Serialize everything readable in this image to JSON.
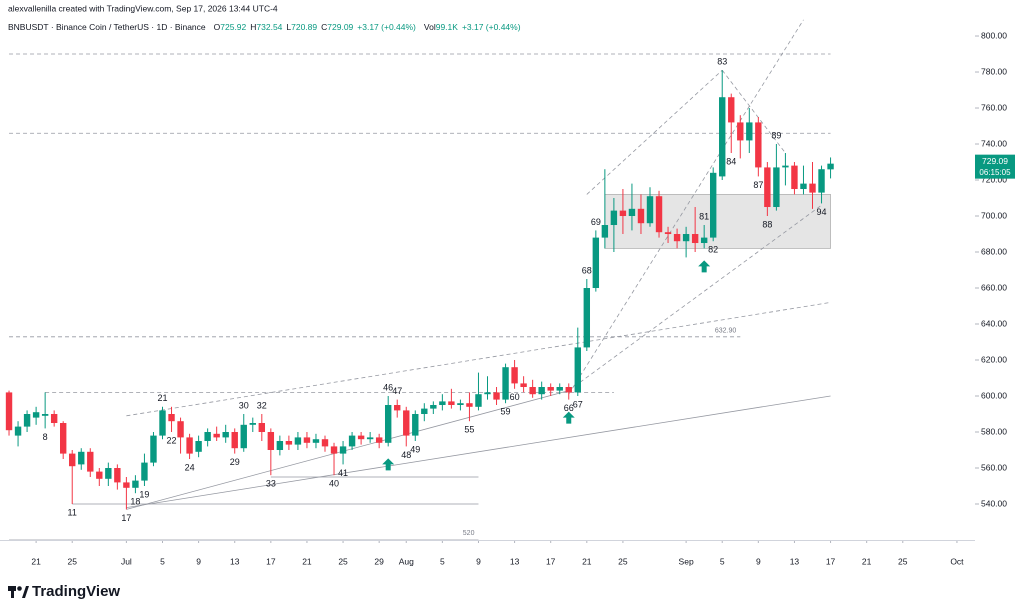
{
  "header": {
    "credit": "alexvallenilla created with TradingView.com, Sep 17, 2026 13:44 UTC-4",
    "symbol_info": "BNBUSDT · Binance Coin / TetherUS · 1D · Binance",
    "o_label": "O",
    "h_label": "H",
    "l_label": "L",
    "c_label": "C",
    "change": "+3.17 (+0.44%)",
    "vol_label": "Vol",
    "volume": "99.1K",
    "vol_change": "+3.17 (+0.44%)"
  },
  "footer": {
    "brand": "TradingView"
  },
  "chart_data": {
    "type": "candlestick",
    "up_color": "#089981",
    "down_color": "#f23645",
    "grid": false,
    "x": [
      "2026-06-18",
      "2026-06-19",
      "2026-06-20",
      "2026-06-21",
      "2026-06-22",
      "2026-06-23",
      "2026-06-24",
      "2026-06-25",
      "2026-06-26",
      "2026-06-27",
      "2026-06-28",
      "2026-06-29",
      "2026-06-30",
      "2026-07-01",
      "2026-07-02",
      "2026-07-03",
      "2026-07-04",
      "2026-07-05",
      "2026-07-06",
      "2026-07-07",
      "2026-07-08",
      "2026-07-09",
      "2026-07-10",
      "2026-07-11",
      "2026-07-12",
      "2026-07-13",
      "2026-07-14",
      "2026-07-15",
      "2026-07-16",
      "2026-07-17",
      "2026-07-18",
      "2026-07-19",
      "2026-07-20",
      "2026-07-21",
      "2026-07-22",
      "2026-07-23",
      "2026-07-24",
      "2026-07-25",
      "2026-07-26",
      "2026-07-27",
      "2026-07-28",
      "2026-07-29",
      "2026-07-30",
      "2026-07-31",
      "2026-08-01",
      "2026-08-02",
      "2026-08-03",
      "2026-08-04",
      "2026-08-05",
      "2026-08-06",
      "2026-08-07",
      "2026-08-08",
      "2026-08-09",
      "2026-08-10",
      "2026-08-11",
      "2026-08-12",
      "2026-08-13",
      "2026-08-14",
      "2026-08-15",
      "2026-08-16",
      "2026-08-17",
      "2026-08-18",
      "2026-08-19",
      "2026-08-20",
      "2026-08-21",
      "2026-08-22",
      "2026-08-23",
      "2026-08-24",
      "2026-08-25",
      "2026-08-26",
      "2026-08-27",
      "2026-08-28",
      "2026-08-29",
      "2026-08-30",
      "2026-08-31",
      "2026-09-01",
      "2026-09-02",
      "2026-09-03",
      "2026-09-04",
      "2026-09-05",
      "2026-09-06",
      "2026-09-07",
      "2026-09-08",
      "2026-09-09",
      "2026-09-10",
      "2026-09-11",
      "2026-09-12",
      "2026-09-13",
      "2026-09-14",
      "2026-09-15",
      "2026-09-16",
      "2026-09-17"
    ],
    "open": [
      602,
      578,
      583,
      588,
      589,
      590,
      585,
      568,
      562,
      569,
      558,
      554,
      560,
      552,
      549,
      553,
      563,
      578,
      590,
      586,
      577,
      569,
      575,
      579,
      577,
      580,
      571,
      584,
      585,
      580,
      570,
      575,
      573,
      577,
      574,
      576,
      572,
      568,
      572,
      578,
      576,
      577,
      574,
      595,
      592,
      578,
      590,
      593,
      595,
      597,
      595,
      596,
      594,
      601,
      602,
      598,
      616,
      607,
      605,
      601,
      605,
      603,
      605,
      602,
      627,
      660,
      688,
      695,
      703,
      700,
      704,
      696,
      711,
      691,
      690,
      686,
      690,
      685,
      688,
      722,
      766,
      752,
      742,
      752,
      727,
      705,
      727,
      728,
      715,
      718,
      713,
      725.92
    ],
    "high": [
      603,
      586,
      592,
      594,
      602,
      592,
      586,
      570,
      571,
      571,
      560,
      563,
      562,
      555,
      556,
      568,
      580,
      594,
      594,
      588,
      579,
      578,
      582,
      583,
      584,
      582,
      590,
      588,
      590,
      582,
      578,
      578,
      580,
      580,
      579,
      578,
      574,
      575,
      580,
      580,
      580,
      579,
      600,
      598,
      594,
      592,
      596,
      597,
      601,
      604,
      598,
      602,
      613,
      611,
      605,
      618,
      620,
      611,
      609,
      608,
      607,
      607,
      607,
      638,
      665,
      692,
      726,
      710,
      715,
      718,
      712,
      716,
      714,
      694,
      693,
      694,
      705,
      695,
      727,
      781,
      768,
      756,
      760,
      755,
      730,
      740,
      735,
      730,
      728,
      730,
      728,
      732.54
    ],
    "low": [
      578,
      572,
      580,
      584,
      582,
      583,
      565,
      540,
      559,
      555,
      550,
      550,
      548,
      537,
      546,
      550,
      561,
      576,
      580,
      568,
      565,
      566,
      572,
      575,
      574,
      568,
      569,
      580,
      575,
      556,
      567,
      570,
      570,
      571,
      571,
      569,
      556,
      562,
      570,
      573,
      574,
      571,
      572,
      588,
      572,
      575,
      586,
      590,
      592,
      593,
      592,
      586,
      592,
      598,
      595,
      596,
      604,
      602,
      599,
      598,
      600,
      601,
      598,
      600,
      625,
      658,
      682,
      680,
      690,
      692,
      690,
      694,
      688,
      685,
      682,
      677,
      680,
      682,
      686,
      720,
      735,
      732,
      735,
      722,
      700,
      703,
      717,
      712,
      712,
      704,
      707,
      720.89
    ],
    "close": [
      581,
      583,
      590,
      591,
      590,
      585,
      568,
      561,
      569,
      558,
      554,
      560,
      552,
      549,
      553,
      563,
      578,
      592,
      586,
      577,
      568,
      575,
      580,
      577,
      580,
      571,
      584,
      585,
      580,
      570,
      575,
      573,
      577,
      574,
      576,
      572,
      568,
      572,
      578,
      576,
      577,
      574,
      595,
      592,
      578,
      590,
      593,
      595,
      597,
      595,
      596,
      594,
      601,
      602,
      598,
      616,
      607,
      605,
      601,
      605,
      603,
      605,
      602,
      627,
      660,
      688,
      695,
      703,
      700,
      704,
      696,
      711,
      691,
      690,
      686,
      690,
      685,
      688,
      724,
      766,
      752,
      742,
      752,
      727,
      705,
      727,
      728,
      715,
      718,
      713,
      726,
      729.09
    ],
    "xlim": [
      "2026-06-17",
      "2026-10-03"
    ],
    "xticks": [
      {
        "value": "2026-06-21",
        "label": "21"
      },
      {
        "value": "2026-06-25",
        "label": "25"
      },
      {
        "value": "2026-07-01",
        "label": "Jul"
      },
      {
        "value": "2026-07-05",
        "label": "5"
      },
      {
        "value": "2026-07-09",
        "label": "9"
      },
      {
        "value": "2026-07-13",
        "label": "13"
      },
      {
        "value": "2026-07-17",
        "label": "17"
      },
      {
        "value": "2026-07-21",
        "label": "21"
      },
      {
        "value": "2026-07-25",
        "label": "25"
      },
      {
        "value": "2026-07-29",
        "label": "29"
      },
      {
        "value": "2026-08-01",
        "label": "Aug"
      },
      {
        "value": "2026-08-05",
        "label": "5"
      },
      {
        "value": "2026-08-09",
        "label": "9"
      },
      {
        "value": "2026-08-13",
        "label": "13"
      },
      {
        "value": "2026-08-17",
        "label": "17"
      },
      {
        "value": "2026-08-21",
        "label": "21"
      },
      {
        "value": "2026-08-25",
        "label": "25"
      },
      {
        "value": "2026-09-01",
        "label": "Sep"
      },
      {
        "value": "2026-09-05",
        "label": "5"
      },
      {
        "value": "2026-09-09",
        "label": "9"
      },
      {
        "value": "2026-09-13",
        "label": "13"
      },
      {
        "value": "2026-09-17",
        "label": "17"
      },
      {
        "value": "2026-09-21",
        "label": "21"
      },
      {
        "value": "2026-09-25",
        "label": "25"
      },
      {
        "value": "2026-10-01",
        "label": "Oct"
      }
    ],
    "ylim": [
      520,
      808.9
    ],
    "yticks": [
      {
        "value": 540,
        "label": "540.00"
      },
      {
        "value": 560,
        "label": "560.00"
      },
      {
        "value": 580,
        "label": "580.00"
      },
      {
        "value": 600,
        "label": "600.00"
      },
      {
        "value": 620,
        "label": "620.00"
      },
      {
        "value": 640,
        "label": "640.00"
      },
      {
        "value": 660,
        "label": "660.00"
      },
      {
        "value": 680,
        "label": "680.00"
      },
      {
        "value": 700,
        "label": "700.00"
      },
      {
        "value": 720,
        "label": "720.00"
      },
      {
        "value": 740,
        "label": "740.00"
      },
      {
        "value": 760,
        "label": "760.00"
      },
      {
        "value": 780,
        "label": "780.00"
      },
      {
        "value": 800,
        "label": "800.00"
      }
    ],
    "countdown": "06:15:05",
    "annotations": [
      {
        "text": "8",
        "x": "2026-06-22",
        "position": "below"
      },
      {
        "text": "11",
        "x": "2026-06-25",
        "position": "below"
      },
      {
        "text": "17",
        "x": "2026-07-01",
        "position": "below"
      },
      {
        "text": "18",
        "x": "2026-07-02",
        "position": "below"
      },
      {
        "text": "19",
        "x": "2026-07-03",
        "position": "below"
      },
      {
        "text": "21",
        "x": "2026-07-05",
        "position": "above"
      },
      {
        "text": "22",
        "x": "2026-07-06",
        "position": "below"
      },
      {
        "text": "24",
        "x": "2026-07-08",
        "position": "below"
      },
      {
        "text": "29",
        "x": "2026-07-13",
        "position": "below"
      },
      {
        "text": "30",
        "x": "2026-07-14",
        "position": "above"
      },
      {
        "text": "32",
        "x": "2026-07-16",
        "position": "above"
      },
      {
        "text": "33",
        "x": "2026-07-17",
        "position": "below"
      },
      {
        "text": "40",
        "x": "2026-07-24",
        "position": "below"
      },
      {
        "text": "41",
        "x": "2026-07-25",
        "position": "below"
      },
      {
        "text": "46",
        "x": "2026-07-30",
        "position": "above"
      },
      {
        "text": "47",
        "x": "2026-07-31",
        "position": "above"
      },
      {
        "text": "48",
        "x": "2026-08-01",
        "position": "below"
      },
      {
        "text": "49",
        "x": "2026-08-02",
        "position": "below"
      },
      {
        "text": "55",
        "x": "2026-08-08",
        "position": "below"
      },
      {
        "text": "59",
        "x": "2026-08-12",
        "position": "below"
      },
      {
        "text": "60",
        "x": "2026-08-13",
        "position": "below"
      },
      {
        "text": "66",
        "x": "2026-08-19",
        "position": "below"
      },
      {
        "text": "67",
        "x": "2026-08-20",
        "position": "below"
      },
      {
        "text": "68",
        "x": "2026-08-21",
        "position": "above"
      },
      {
        "text": "69",
        "x": "2026-08-22",
        "position": "above"
      },
      {
        "text": "81",
        "x": "2026-09-03",
        "position": "above"
      },
      {
        "text": "82",
        "x": "2026-09-04",
        "position": "below"
      },
      {
        "text": "83",
        "x": "2026-09-05",
        "position": "above"
      },
      {
        "text": "84",
        "x": "2026-09-06",
        "position": "below"
      },
      {
        "text": "87",
        "x": "2026-09-09",
        "position": "below"
      },
      {
        "text": "88",
        "x": "2026-09-10",
        "position": "below"
      },
      {
        "text": "89",
        "x": "2026-09-11",
        "position": "above"
      },
      {
        "text": "94",
        "x": "2026-09-16",
        "position": "below"
      }
    ],
    "levels": [
      {
        "price": 790,
        "from": "2026-06-18",
        "to": "2026-09-17",
        "style": "dashed"
      },
      {
        "price": 746,
        "from": "2026-06-18",
        "to": "2026-09-17",
        "style": "dashed"
      },
      {
        "price": 632.9,
        "from": "2026-06-18",
        "to": "2026-09-07",
        "style": "dashed",
        "label": "632.90"
      },
      {
        "price": 602,
        "from": "2026-06-22",
        "to": "2026-08-24",
        "style": "dashed"
      },
      {
        "price": 555,
        "from": "2026-07-17",
        "to": "2026-08-09",
        "style": "solid"
      },
      {
        "price": 540,
        "from": "2026-06-25",
        "to": "2026-08-09",
        "style": "solid"
      },
      {
        "price": 520,
        "from": "2026-06-18",
        "to": "2026-08-09",
        "style": "solid",
        "labeled": true
      }
    ],
    "trendlines": [
      {
        "from": {
          "x": "2026-07-01",
          "price": 589
        },
        "to": {
          "x": "2026-09-17",
          "price": 652
        },
        "style": "dashed"
      },
      {
        "from": {
          "x": "2026-07-01",
          "price": 538
        },
        "to": {
          "x": "2026-09-17",
          "price": 600
        },
        "style": "solid"
      },
      {
        "from": {
          "x": "2026-07-01",
          "price": 537
        },
        "to": {
          "x": "2026-08-19",
          "price": 603
        },
        "style": "solid"
      },
      {
        "from": {
          "x": "2026-08-19",
          "price": 603
        },
        "to": {
          "x": "2026-09-16",
          "price": 706
        },
        "style": "dashed"
      },
      {
        "from": {
          "x": "2026-08-19",
          "price": 601
        },
        "to": {
          "x": "2026-09-14",
          "price": 809
        },
        "style": "dashed"
      },
      {
        "from": {
          "x": "2026-08-21",
          "price": 712
        },
        "to": {
          "x": "2026-09-05",
          "price": 781
        },
        "style": "dashed"
      },
      {
        "from": {
          "x": "2026-09-05",
          "price": 781
        },
        "to": {
          "x": "2026-09-12",
          "price": 735
        },
        "style": "dashed"
      }
    ],
    "zone": {
      "top": 712,
      "bottom": 682,
      "from": "2026-08-23",
      "to": "2026-09-17"
    },
    "signals": [
      "2026-07-30",
      "2026-08-19",
      "2026-09-03"
    ]
  }
}
